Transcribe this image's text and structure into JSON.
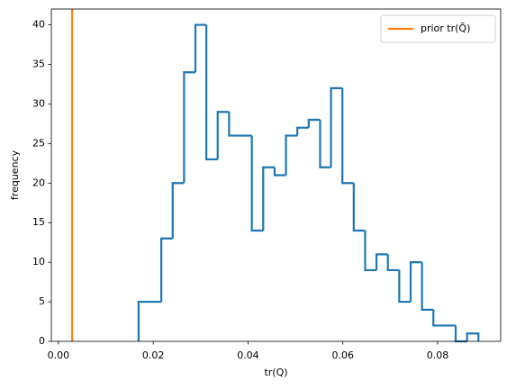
{
  "chart_data": {
    "type": "histogram",
    "x_label": "tr(Q)",
    "y_label": "frequency",
    "bins": [
      0.0169,
      0.0193,
      0.0217,
      0.0241,
      0.0265,
      0.0289,
      0.0312,
      0.0336,
      0.036,
      0.0384,
      0.0408,
      0.0432,
      0.0456,
      0.048,
      0.0504,
      0.0528,
      0.0552,
      0.0575,
      0.0599,
      0.0623,
      0.0647,
      0.0671,
      0.0695,
      0.0719,
      0.0743,
      0.0767,
      0.0791,
      0.0815,
      0.0838,
      0.0862,
      0.0886
    ],
    "counts": [
      5,
      5,
      13,
      20,
      34,
      40,
      23,
      29,
      26,
      26,
      14,
      22,
      21,
      26,
      27,
      28,
      22,
      32,
      20,
      14,
      9,
      11,
      9,
      5,
      10,
      4,
      2,
      2,
      0,
      1
    ],
    "color": "#1f77b4",
    "reference_lines": [
      {
        "name": "prior tr(Q̄)",
        "x": 0.0029,
        "color": "#ff7f0e"
      }
    ],
    "xlim": [
      -0.0015,
      0.0933
    ],
    "ylim": [
      0,
      42
    ],
    "xticks": [
      {
        "value": 0,
        "label": "0.00"
      },
      0.02,
      0.04,
      0.06,
      0.08
    ],
    "yticks": [
      0,
      5,
      10,
      15,
      20,
      25,
      30,
      35,
      40
    ],
    "legend": "upper right"
  }
}
